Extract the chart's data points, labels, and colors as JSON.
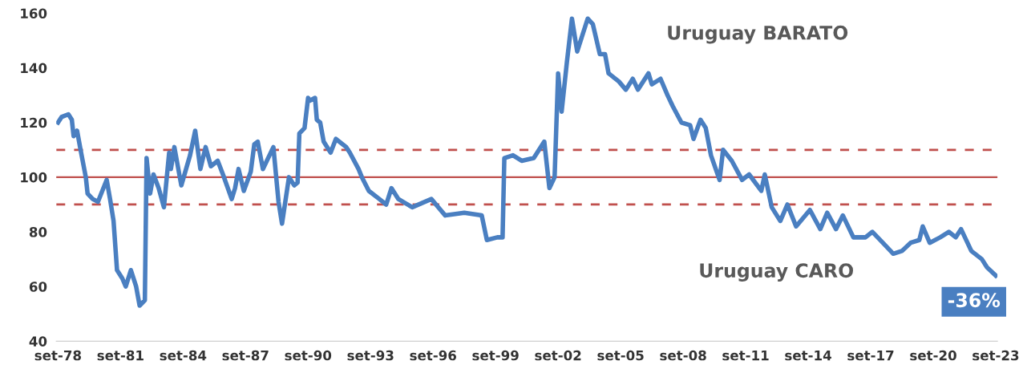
{
  "chart_data": {
    "type": "line",
    "ylim": [
      40,
      160
    ],
    "yticks": [
      40,
      60,
      80,
      100,
      120,
      140,
      160
    ],
    "xlim": [
      "1978-08",
      "2023-10"
    ],
    "xticks": [
      {
        "value": "1978-09",
        "label": "set-78"
      },
      {
        "value": "1981-09",
        "label": "set-81"
      },
      {
        "value": "1984-09",
        "label": "set-84"
      },
      {
        "value": "1987-09",
        "label": "set-87"
      },
      {
        "value": "1990-09",
        "label": "set-90"
      },
      {
        "value": "1993-09",
        "label": "set-93"
      },
      {
        "value": "1996-09",
        "label": "set-96"
      },
      {
        "value": "1999-09",
        "label": "set-99"
      },
      {
        "value": "2002-09",
        "label": "set-02"
      },
      {
        "value": "2005-09",
        "label": "set-05"
      },
      {
        "value": "2008-09",
        "label": "set-08"
      },
      {
        "value": "2011-09",
        "label": "set-11"
      },
      {
        "value": "2014-09",
        "label": "set-14"
      },
      {
        "value": "2017-09",
        "label": "set-17"
      },
      {
        "value": "2020-09",
        "label": "set-20"
      },
      {
        "value": "2023-09",
        "label": "set-23"
      }
    ],
    "grid": false,
    "legend": false,
    "marker": "none",
    "line_style": "solid",
    "ref_lines": [
      {
        "axis": "y",
        "value": 110,
        "color": "#c0504d",
        "line_style": "dashed"
      },
      {
        "axis": "y",
        "value": 100,
        "color": "#c0504d",
        "line_style": "solid"
      },
      {
        "axis": "y",
        "value": 90,
        "color": "#c0504d",
        "line_style": "dashed"
      }
    ],
    "annotations": [
      "Uruguay BARATO",
      "Uruguay CARO",
      "-36%"
    ],
    "series": [
      {
        "color": "#4a7fc1",
        "x": [
          "1978-09",
          "1978-11",
          "1979-03",
          "1979-05",
          "1979-06",
          "1979-08",
          "1979-10",
          "1980-01",
          "1980-02",
          "1980-05",
          "1980-08",
          "1981-01",
          "1981-03",
          "1981-05",
          "1981-07",
          "1981-10",
          "1981-12",
          "1982-03",
          "1982-06",
          "1982-08",
          "1982-11",
          "1982-12",
          "1983-02",
          "1983-04",
          "1983-07",
          "1983-10",
          "1984-01",
          "1984-02",
          "1984-04",
          "1984-08",
          "1985-01",
          "1985-04",
          "1985-07",
          "1985-10",
          "1986-01",
          "1986-05",
          "1986-08",
          "1987-01",
          "1987-03",
          "1987-05",
          "1987-08",
          "1987-12",
          "1988-02",
          "1988-04",
          "1988-07",
          "1989-01",
          "1989-04",
          "1989-06",
          "1989-10",
          "1990-01",
          "1990-03",
          "1990-04",
          "1990-07",
          "1990-09",
          "1990-10",
          "1991-01",
          "1991-02",
          "1991-04",
          "1991-06",
          "1991-10",
          "1992-01",
          "1992-07",
          "1992-09",
          "1993-02",
          "1993-04",
          "1993-08",
          "1994-02",
          "1994-06",
          "1994-09",
          "1995-01",
          "1995-09",
          "1996-08",
          "1997-04",
          "1998-03",
          "1999-01",
          "1999-04",
          "1999-10",
          "2000-01",
          "2000-02",
          "2000-07",
          "2000-12",
          "2001-07",
          "2002-01",
          "2002-04",
          "2002-07",
          "2002-09",
          "2002-11",
          "2003-02",
          "2003-05",
          "2003-08",
          "2004-02",
          "2004-05",
          "2004-09",
          "2004-12",
          "2005-02",
          "2005-08",
          "2005-12",
          "2006-04",
          "2006-07",
          "2007-01",
          "2007-03",
          "2007-08",
          "2007-12",
          "2008-03",
          "2008-08",
          "2009-01",
          "2009-03",
          "2009-07",
          "2009-10",
          "2010-01",
          "2010-06",
          "2010-08",
          "2011-01",
          "2011-07",
          "2011-11",
          "2012-06",
          "2012-08",
          "2012-12",
          "2013-05",
          "2013-09",
          "2014-02",
          "2014-10",
          "2015-04",
          "2015-08",
          "2016-01",
          "2016-05",
          "2016-11",
          "2017-06",
          "2017-10",
          "2018-04",
          "2018-10",
          "2019-03",
          "2019-08",
          "2020-01",
          "2020-03",
          "2020-07",
          "2021-01",
          "2021-06",
          "2021-10",
          "2022-01",
          "2022-07",
          "2023-01",
          "2023-04",
          "2023-09"
        ],
        "values": [
          120,
          122,
          123,
          121,
          115,
          117,
          110,
          100,
          94,
          92,
          91,
          99,
          92,
          84,
          66,
          63,
          60,
          66,
          60,
          53,
          55,
          107,
          94,
          101,
          96,
          89,
          109,
          103,
          111,
          97,
          108,
          117,
          103,
          111,
          104,
          106,
          101,
          92,
          96,
          103,
          95,
          102,
          112,
          113,
          103,
          111,
          91,
          83,
          100,
          97,
          98,
          116,
          118,
          129,
          128,
          129,
          121,
          120,
          113,
          109,
          114,
          111,
          109,
          103,
          100,
          95,
          92,
          90,
          96,
          92,
          89,
          92,
          86,
          87,
          86,
          77,
          78,
          78,
          107,
          108,
          106,
          107,
          113,
          96,
          100,
          138,
          124,
          142,
          158,
          146,
          158,
          156,
          145,
          145,
          138,
          135,
          132,
          136,
          132,
          138,
          134,
          136,
          130,
          126,
          120,
          119,
          114,
          121,
          118,
          108,
          99,
          110,
          106,
          99,
          101,
          95,
          101,
          89,
          84,
          90,
          82,
          88,
          81,
          87,
          81,
          86,
          78,
          78,
          80,
          76,
          72,
          73,
          76,
          77,
          82,
          76,
          78,
          80,
          78,
          81,
          73,
          70,
          67,
          64
        ]
      }
    ]
  }
}
